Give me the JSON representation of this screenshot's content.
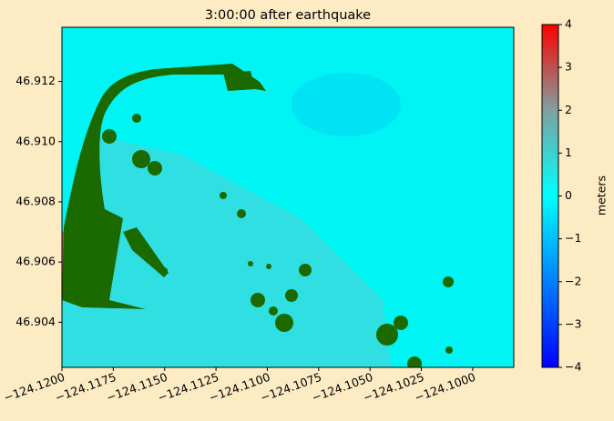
{
  "chart_data": {
    "type": "heatmap",
    "title": "3:00:00 after earthquake",
    "xlim": [
      -124.12,
      -124.098
    ],
    "ylim": [
      46.9025,
      46.9138
    ],
    "xticks": [
      {
        "value": -124.12,
        "label": "−124.1200"
      },
      {
        "value": -124.1175,
        "label": "−124.1175"
      },
      {
        "value": -124.115,
        "label": "−124.1150"
      },
      {
        "value": -124.1125,
        "label": "−124.1125"
      },
      {
        "value": -124.11,
        "label": "−124.1100"
      },
      {
        "value": -124.1075,
        "label": "−124.1075"
      },
      {
        "value": -124.105,
        "label": "−124.1050"
      },
      {
        "value": -124.1025,
        "label": "−124.1025"
      },
      {
        "value": -124.1,
        "label": "−124.1000"
      }
    ],
    "yticks": [
      46.904,
      46.906,
      46.908,
      {
        "value": 46.91,
        "label": "46.910"
      },
      46.912
    ],
    "colorbar": {
      "label": "meters",
      "lim": [
        -4,
        4
      ],
      "ticks": [
        {
          "value": -4,
          "label": "−4"
        },
        {
          "value": -3,
          "label": "−3"
        },
        {
          "value": -2,
          "label": "−2"
        },
        {
          "value": -1,
          "label": "−1"
        },
        0,
        1,
        2,
        3,
        4
      ],
      "colors": [
        "#0000ff",
        "#0080ff",
        "#00ffff",
        "#7fa0a0",
        "#ff0000"
      ]
    },
    "land_color": "#1b6a00"
  }
}
